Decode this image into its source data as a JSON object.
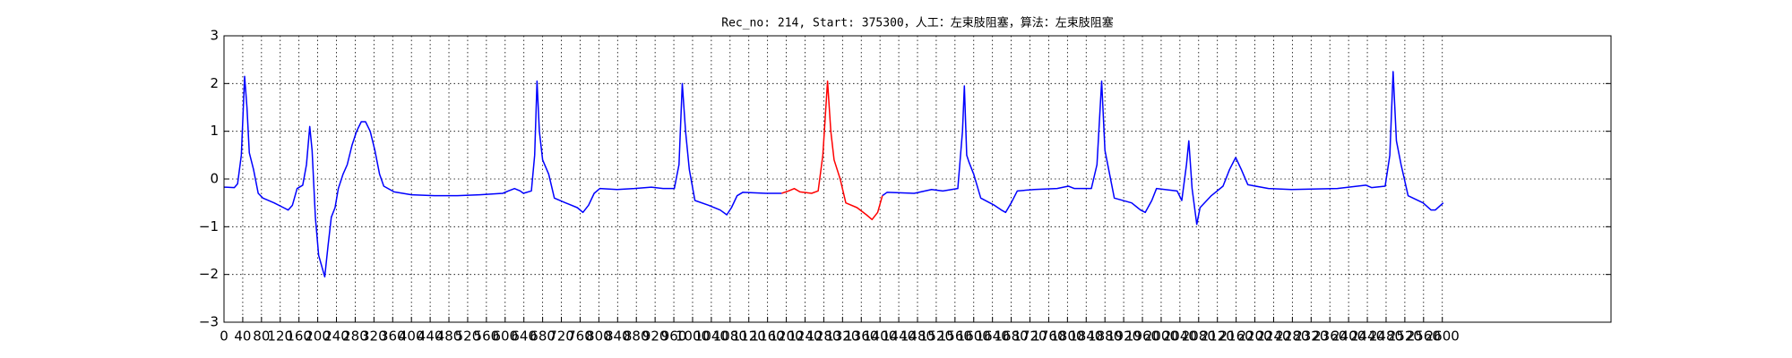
{
  "chart_data": {
    "type": "line",
    "title": "Rec_no: 214, Start: 375300，人工：左束肢阻塞，算法：左束肢阻塞",
    "xlim": [
      0,
      2960
    ],
    "ylim": [
      -3,
      3
    ],
    "xticks": [
      0,
      40,
      80,
      120,
      160,
      200,
      240,
      280,
      320,
      360,
      400,
      440,
      480,
      520,
      560,
      600,
      640,
      680,
      720,
      760,
      800,
      840,
      880,
      920,
      960,
      1000,
      1040,
      1080,
      1120,
      1160,
      1200,
      1240,
      1280,
      1320,
      1360,
      1400,
      1440,
      1480,
      1520,
      1560,
      1600,
      1640,
      1680,
      1720,
      1760,
      1800,
      1840,
      1880,
      1920,
      1960,
      2000,
      2040,
      2080,
      2120,
      2160,
      2200,
      2240,
      2280,
      2320,
      2360,
      2400,
      2440,
      2480,
      2520,
      2560,
      2600
    ],
    "yticks": [
      {
        "value": -3,
        "label": "−3"
      },
      {
        "value": -2,
        "label": "−2"
      },
      {
        "value": -1,
        "label": "−1"
      },
      0,
      1,
      2,
      3
    ],
    "grid": true,
    "series": [
      {
        "color": "#0000ff",
        "x": [
          0,
          22,
          29,
          37,
          44,
          49,
          54,
          63,
          73,
          83,
          107,
          127,
          137,
          146,
          156,
          168,
          176,
          183,
          188,
          195,
          202,
          215,
          222,
          229,
          237,
          244,
          254,
          263,
          273,
          283,
          293,
          302,
          312,
          322,
          332,
          341,
          363,
          400,
          449,
          498,
          546,
          595,
          607,
          620,
          632,
          639,
          656,
          663,
          668,
          673,
          680,
          693,
          705,
          729,
          754,
          766,
          778,
          790,
          802,
          839,
          876,
          912,
          937,
          961,
          971,
          978,
          985,
          993,
          1005,
          1034,
          1059,
          1073,
          1083,
          1095,
          1107,
          1156,
          1190,
          1300,
          1405,
          1415,
          1473,
          1510,
          1534,
          1566,
          1576,
          1580,
          1585,
          1590,
          1600,
          1615,
          1644,
          1659,
          1668,
          1680,
          1693,
          1729,
          1778,
          1802,
          1815,
          1851,
          1863,
          1873,
          1880,
          1888,
          1900,
          1937,
          1956,
          1966,
          1980,
          1990,
          2034,
          2044,
          2054,
          2059,
          2066,
          2076,
          2083,
          2107,
          2132,
          2146,
          2159,
          2171,
          2185,
          2229,
          2278,
          2376,
          2437,
          2449,
          2478,
          2488,
          2495,
          2502,
          2512,
          2527,
          2559,
          2576,
          2585,
          2602
        ],
        "values": [
          -0.17,
          -0.18,
          -0.1,
          0.5,
          2.15,
          1.5,
          0.55,
          0.2,
          -0.3,
          -0.4,
          -0.5,
          -0.6,
          -0.65,
          -0.55,
          -0.2,
          -0.13,
          0.3,
          1.1,
          0.6,
          -0.8,
          -1.6,
          -2.05,
          -1.4,
          -0.8,
          -0.6,
          -0.2,
          0.1,
          0.3,
          0.7,
          1.0,
          1.2,
          1.2,
          1.0,
          0.6,
          0.1,
          -0.15,
          -0.27,
          -0.33,
          -0.35,
          -0.35,
          -0.33,
          -0.3,
          -0.25,
          -0.2,
          -0.25,
          -0.3,
          -0.25,
          0.5,
          2.05,
          1.0,
          0.4,
          0.1,
          -0.4,
          -0.5,
          -0.6,
          -0.7,
          -0.55,
          -0.3,
          -0.2,
          -0.22,
          -0.2,
          -0.17,
          -0.2,
          -0.2,
          0.3,
          2.0,
          1.0,
          0.2,
          -0.45,
          -0.55,
          -0.65,
          -0.75,
          -0.6,
          -0.35,
          -0.28,
          -0.3,
          -0.3,
          null,
          -0.35,
          -0.28,
          -0.3,
          -0.22,
          -0.25,
          -0.2,
          1.0,
          1.95,
          0.5,
          0.35,
          0.1,
          -0.4,
          -0.55,
          -0.65,
          -0.7,
          -0.5,
          -0.25,
          -0.22,
          -0.2,
          -0.15,
          -0.2,
          -0.2,
          0.3,
          2.05,
          0.6,
          0.2,
          -0.4,
          -0.5,
          -0.65,
          -0.7,
          -0.45,
          -0.2,
          -0.25,
          -0.45,
          0.3,
          0.8,
          -0.2,
          -0.95,
          -0.6,
          -0.35,
          -0.15,
          0.2,
          0.45,
          0.2,
          -0.12,
          -0.2,
          -0.22,
          -0.2,
          -0.13,
          -0.18,
          -0.15,
          0.5,
          2.25,
          0.8,
          0.3,
          -0.35,
          -0.5,
          -0.65,
          -0.65,
          -0.5
        ]
      },
      {
        "color": "#ff0000",
        "x": [
          1190,
          1205,
          1217,
          1229,
          1254,
          1268,
          1278,
          1288,
          1295,
          1302,
          1315,
          1327,
          1351,
          1371,
          1383,
          1395,
          1405
        ],
        "values": [
          -0.3,
          -0.25,
          -0.2,
          -0.27,
          -0.3,
          -0.25,
          0.5,
          2.05,
          1.0,
          0.4,
          0.0,
          -0.5,
          -0.6,
          -0.75,
          -0.85,
          -0.7,
          -0.35
        ]
      }
    ]
  }
}
